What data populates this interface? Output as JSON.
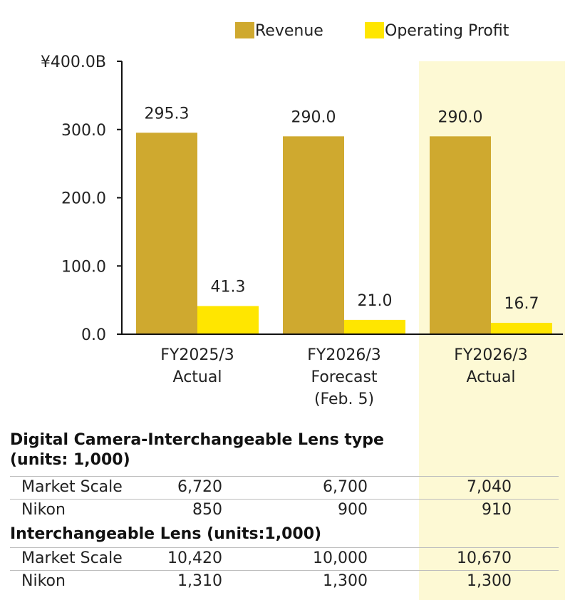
{
  "chart_data": {
    "type": "bar",
    "categories": [
      [
        "FY2025/3",
        "Actual"
      ],
      [
        "FY2026/3",
        "Forecast",
        "(Feb. 5)"
      ],
      [
        "FY2026/3",
        "Actual"
      ]
    ],
    "series": [
      {
        "name": "Revenue",
        "values": [
          295.3,
          290.0,
          290.0
        ],
        "labels": [
          "295.3",
          "290.0",
          "290.0"
        ],
        "color": "#cfa92f"
      },
      {
        "name": "Operating Profit",
        "values": [
          41.3,
          21.0,
          16.7
        ],
        "labels": [
          "41.3",
          "21.0",
          "16.7"
        ],
        "color": "#ffe600"
      }
    ],
    "ylim": [
      0,
      400
    ],
    "yticks": [
      0,
      100,
      200,
      300,
      400
    ],
    "ytick_labels": [
      "0.0",
      "100.0",
      "200.0",
      "300.0",
      "¥400.0B"
    ],
    "highlight_category": 2,
    "highlight_color": "#fdf9d4",
    "legend_position": "top-right"
  },
  "tables": [
    {
      "title_line1": "Digital Camera-Interchangeable Lens type",
      "title_line2": "(units: 1,000)",
      "rows": [
        {
          "name": "Market Scale",
          "v1": "6,720",
          "v2": "6,700",
          "v3": "7,040"
        },
        {
          "name": "Nikon",
          "v1": "850",
          "v2": "900",
          "v3": "910"
        }
      ]
    },
    {
      "title_line1": "Interchangeable Lens (units:1,000)",
      "rows": [
        {
          "name": "Market Scale",
          "v1": "10,420",
          "v2": "10,000",
          "v3": "10,670"
        },
        {
          "name": "Nikon",
          "v1": "1,310",
          "v2": "1,300",
          "v3": "1,300"
        }
      ]
    }
  ]
}
